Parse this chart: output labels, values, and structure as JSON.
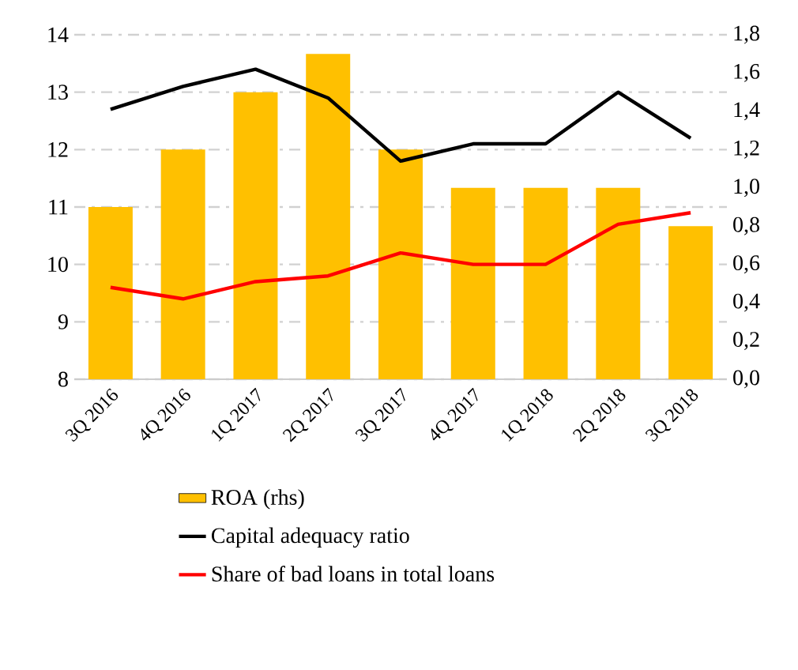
{
  "chart_data": {
    "type": "bar",
    "categories": [
      "3Q 2016",
      "4Q 2016",
      "1Q 2017",
      "2Q 2017",
      "3Q 2017",
      "4Q 2017",
      "1Q 2018",
      "2Q 2018",
      "3Q 2018"
    ],
    "series": [
      {
        "name": "ROA (rhs)",
        "axis": "y2",
        "color": "#ffc000",
        "values": [
          0.9,
          1.2,
          1.5,
          1.7,
          1.2,
          1.0,
          1.0,
          1.0,
          0.8
        ]
      },
      {
        "name": "Capital adequacy ratio",
        "type": "line",
        "color": "#000000",
        "values": [
          12.7,
          13.1,
          13.4,
          12.9,
          11.8,
          12.1,
          12.1,
          13.0,
          12.2
        ]
      },
      {
        "name": "Share of bad loans in total loans",
        "type": "line",
        "color": "#ff0000",
        "values": [
          9.6,
          9.4,
          9.7,
          9.8,
          10.2,
          10.0,
          10.0,
          10.7,
          10.9
        ]
      }
    ],
    "ylim": [
      8,
      14
    ],
    "yticks": [
      8,
      9,
      10,
      11,
      12,
      13,
      14
    ],
    "y2lim": [
      0,
      1.8
    ],
    "y2ticks": [
      {
        "value": 0,
        "label": "0,0"
      },
      {
        "value": 0.2,
        "label": "0,2"
      },
      {
        "value": 0.4,
        "label": "0,4"
      },
      {
        "value": 0.6,
        "label": "0,6"
      },
      {
        "value": 0.8,
        "label": "0,8"
      },
      {
        "value": 1.0,
        "label": "1,0"
      },
      {
        "value": 1.2,
        "label": "1,2"
      },
      {
        "value": 1.4,
        "label": "1,4"
      },
      {
        "value": 1.6,
        "label": "1,6"
      },
      {
        "value": 1.8,
        "label": "1,8"
      }
    ],
    "grid": "y",
    "legend": "bottom"
  }
}
